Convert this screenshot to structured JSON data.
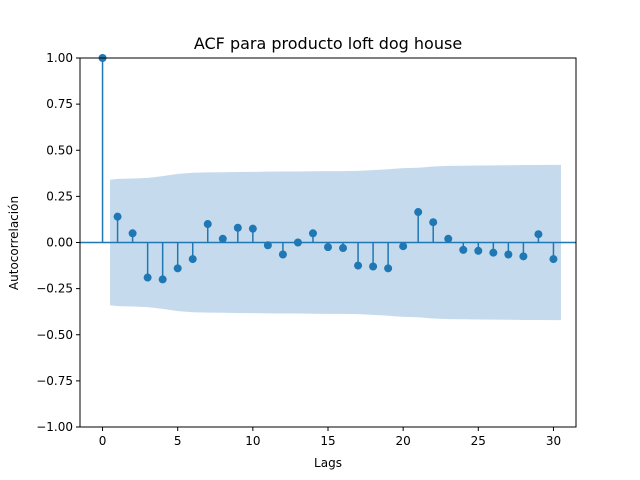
{
  "chart_data": {
    "type": "stem",
    "title": "ACF para producto loft dog house",
    "xlabel": "Lags",
    "ylabel": "Autocorrelación",
    "xlim": [
      -1.5,
      31.5
    ],
    "ylim": [
      -1.0,
      1.0
    ],
    "xticks": [
      0,
      5,
      10,
      15,
      20,
      25,
      30
    ],
    "xtick_labels": [
      "0",
      "5",
      "10",
      "15",
      "20",
      "25",
      "30"
    ],
    "yticks": [
      -1.0,
      -0.75,
      -0.5,
      -0.25,
      0.0,
      0.25,
      0.5,
      0.75,
      1.0
    ],
    "ytick_labels": [
      "−1.00",
      "−0.75",
      "−0.50",
      "−0.25",
      "0.00",
      "0.25",
      "0.50",
      "0.75",
      "1.00"
    ],
    "grid": false,
    "colors": {
      "series": "#1f77b4",
      "confidence": "#c5dbed",
      "axes": "#000000"
    },
    "lags": [
      0,
      1,
      2,
      3,
      4,
      5,
      6,
      7,
      8,
      9,
      10,
      11,
      12,
      13,
      14,
      15,
      16,
      17,
      18,
      19,
      20,
      21,
      22,
      23,
      24,
      25,
      26,
      27,
      28,
      29,
      30
    ],
    "acf": [
      1.0,
      0.14,
      0.05,
      -0.19,
      -0.2,
      -0.14,
      -0.09,
      0.1,
      0.02,
      0.08,
      0.075,
      -0.015,
      -0.065,
      0.0,
      0.05,
      -0.025,
      -0.03,
      -0.125,
      -0.13,
      -0.14,
      -0.02,
      0.165,
      0.11,
      0.02,
      -0.04,
      -0.045,
      -0.055,
      -0.065,
      -0.075,
      0.045,
      -0.09
    ],
    "confidence_band": {
      "lags": [
        0.5,
        1,
        2,
        3,
        4,
        5,
        6,
        7,
        8,
        9,
        10,
        11,
        12,
        13,
        14,
        15,
        16,
        17,
        18,
        19,
        20,
        21,
        22,
        23,
        24,
        25,
        26,
        27,
        28,
        29,
        30,
        30.5
      ],
      "upper": [
        0.34,
        0.345,
        0.347,
        0.35,
        0.36,
        0.372,
        0.378,
        0.38,
        0.381,
        0.382,
        0.383,
        0.384,
        0.385,
        0.385,
        0.386,
        0.387,
        0.387,
        0.388,
        0.392,
        0.397,
        0.403,
        0.405,
        0.412,
        0.415,
        0.416,
        0.417,
        0.418,
        0.419,
        0.42,
        0.42,
        0.421,
        0.421
      ]
    }
  }
}
